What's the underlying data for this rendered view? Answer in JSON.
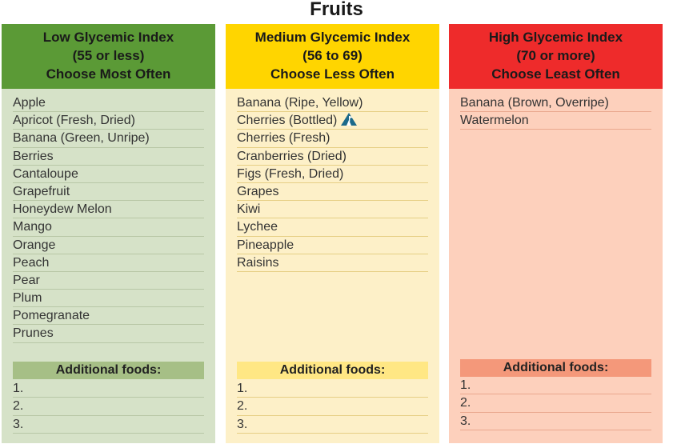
{
  "title": "Fruits",
  "columns": {
    "low": {
      "heading": [
        "Low Glycemic Index",
        "(55 or less)",
        "Choose Most Often"
      ],
      "color": "#5b9a36",
      "items": [
        "Apple",
        "Apricot (Fresh, Dried)",
        "Banana (Green, Unripe)",
        "Berries",
        "Cantaloupe",
        "Grapefruit",
        "Honeydew Melon",
        "Mango",
        "Orange",
        "Peach",
        "Pear",
        "Plum",
        "Pomegranate",
        "Prunes"
      ],
      "additional_label": "Additional foods:",
      "additional": [
        "1.",
        "2.",
        "3."
      ]
    },
    "medium": {
      "heading": [
        "Medium Glycemic Index",
        "(56 to 69)",
        "Choose Less Often"
      ],
      "color": "#ffd500",
      "items": [
        "Banana (Ripe, Yellow)",
        "Cherries (Bottled)",
        "Cherries (Fresh)",
        "Cranberries (Dried)",
        "Figs (Fresh, Dried)",
        "Grapes",
        "Kiwi",
        "Lychee",
        "Pineapple",
        "Raisins"
      ],
      "item_icons": {
        "1": "mountain-flag-icon"
      },
      "additional_label": "Additional foods:",
      "additional": [
        "1.",
        "2.",
        "3."
      ]
    },
    "high": {
      "heading": [
        "High Glycemic Index",
        "(70 or more)",
        "Choose Least Often"
      ],
      "color": "#ee2b2b",
      "items": [
        "Banana (Brown, Overripe)",
        "Watermelon"
      ],
      "additional_label": "Additional foods:",
      "additional": [
        "1.",
        "2.",
        "3."
      ]
    }
  }
}
